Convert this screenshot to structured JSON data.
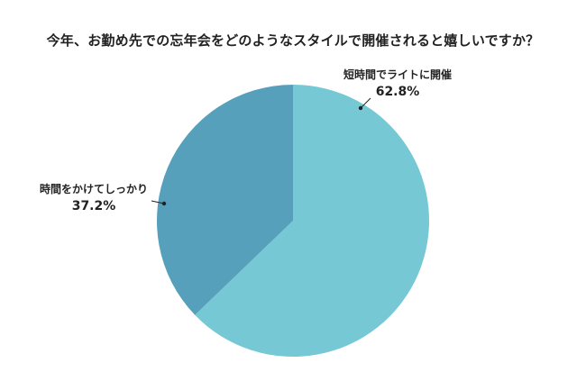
{
  "chart_data": {
    "type": "pie",
    "title": "今年、お勤め先での忘年会をどのようなスタイルで開催されると嬉しいですか？",
    "slices": [
      {
        "label": "短時間でライトに開催",
        "value": 62.8,
        "value_label": "62.8%",
        "color": "#76C9D4"
      },
      {
        "label": "時間をかけてしっかり",
        "value": 37.2,
        "value_label": "37.2%",
        "color": "#57A0BC"
      }
    ]
  }
}
